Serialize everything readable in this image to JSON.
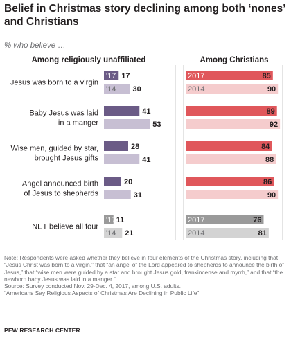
{
  "title": "Belief in Christmas story declining among both ‘nones’ and Christians",
  "subtitle": "% who believe …",
  "chart_data": {
    "type": "bar",
    "orientation": "horizontal",
    "categories": [
      [
        "Jesus was born to a virgin"
      ],
      [
        "Baby Jesus was laid",
        "in a manger"
      ],
      [
        "Wise men, guided by star,",
        "brought Jesus gifts"
      ],
      [
        "Angel announced birth",
        "of Jesus to shepherds"
      ],
      [
        "NET believe all four"
      ]
    ],
    "panels": [
      {
        "title": "Among religiously unaffiliated",
        "series": [
          {
            "name": "'17",
            "values": [
              17,
              41,
              28,
              20,
              11
            ]
          },
          {
            "name": "'14",
            "values": [
              30,
              53,
              41,
              31,
              21
            ]
          }
        ]
      },
      {
        "title": "Among Christians",
        "series": [
          {
            "name": "2017",
            "values": [
              85,
              89,
              84,
              86,
              76
            ]
          },
          {
            "name": "2014",
            "values": [
              90,
              92,
              88,
              90,
              81
            ]
          }
        ]
      }
    ],
    "series_labels_shown_on": [
      0,
      4
    ],
    "colors": {
      "unaffiliated_2017": "#6b5b86",
      "unaffiliated_2014": "#c7bfd3",
      "christian_2017": "#e0575b",
      "christian_2014": "#f5cccd",
      "net_2017": "#9a9a9a",
      "net_2014": "#d3d3d3"
    },
    "xlim": [
      0,
      100
    ],
    "grid": false,
    "value_labels": true
  },
  "notes": [
    "Note: Respondents were asked whether they believe in four elements of the Christmas story, including that “Jesus Christ was born to a virgin,” that “an angel of the Lord appeared to shepherds to announce the birth of Jesus,” that “wise men were guided by a star and brought Jesus gold, frankincense and myrrh,” and that “the newborn baby Jesus was laid in a manger.”",
    "Source: Survey conducted Nov. 29-Dec. 4, 2017, among U.S. adults.",
    "“Americans Say Religious Aspects of Christmas Are Declining in Public Life”"
  ],
  "brand": "PEW RESEARCH CENTER"
}
